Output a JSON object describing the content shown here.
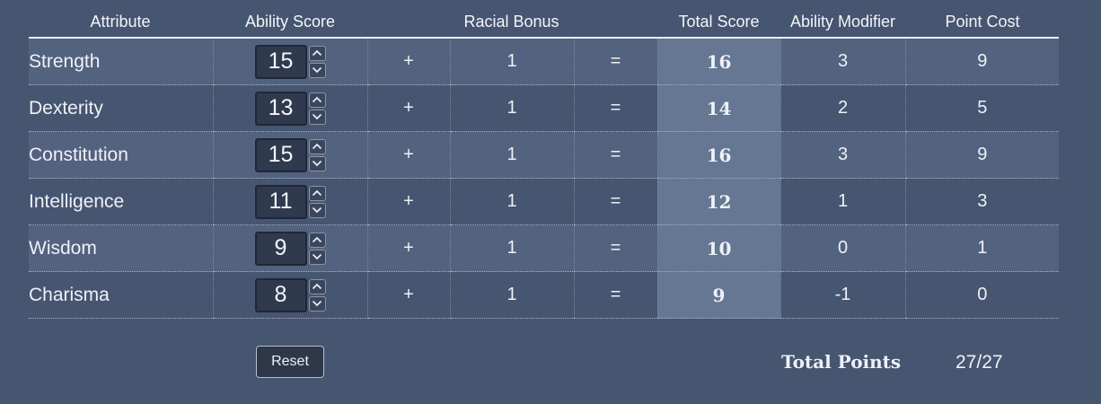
{
  "headers": {
    "attribute": "Attribute",
    "ability_score": "Ability Score",
    "racial_bonus": "Racial Bonus",
    "total_score": "Total Score",
    "ability_modifier": "Ability Modifier",
    "point_cost": "Point Cost"
  },
  "rows": [
    {
      "name": "Strength",
      "score": "15",
      "plus": "+",
      "bonus": "1",
      "equals": "=",
      "total": "16",
      "modifier": "3",
      "cost": "9"
    },
    {
      "name": "Dexterity",
      "score": "13",
      "plus": "+",
      "bonus": "1",
      "equals": "=",
      "total": "14",
      "modifier": "2",
      "cost": "5"
    },
    {
      "name": "Constitution",
      "score": "15",
      "plus": "+",
      "bonus": "1",
      "equals": "=",
      "total": "16",
      "modifier": "3",
      "cost": "9"
    },
    {
      "name": "Intelligence",
      "score": "11",
      "plus": "+",
      "bonus": "1",
      "equals": "=",
      "total": "12",
      "modifier": "1",
      "cost": "3"
    },
    {
      "name": "Wisdom",
      "score": "9",
      "plus": "+",
      "bonus": "1",
      "equals": "=",
      "total": "10",
      "modifier": "0",
      "cost": "1"
    },
    {
      "name": "Charisma",
      "score": "8",
      "plus": "+",
      "bonus": "1",
      "equals": "=",
      "total": "9",
      "modifier": "-1",
      "cost": "0"
    }
  ],
  "footer": {
    "reset_label": "Reset",
    "total_points_label": "Total Points",
    "total_points_value": "27/27"
  },
  "icons": {
    "increment": "chevron-up-icon",
    "decrement": "chevron-down-icon"
  }
}
